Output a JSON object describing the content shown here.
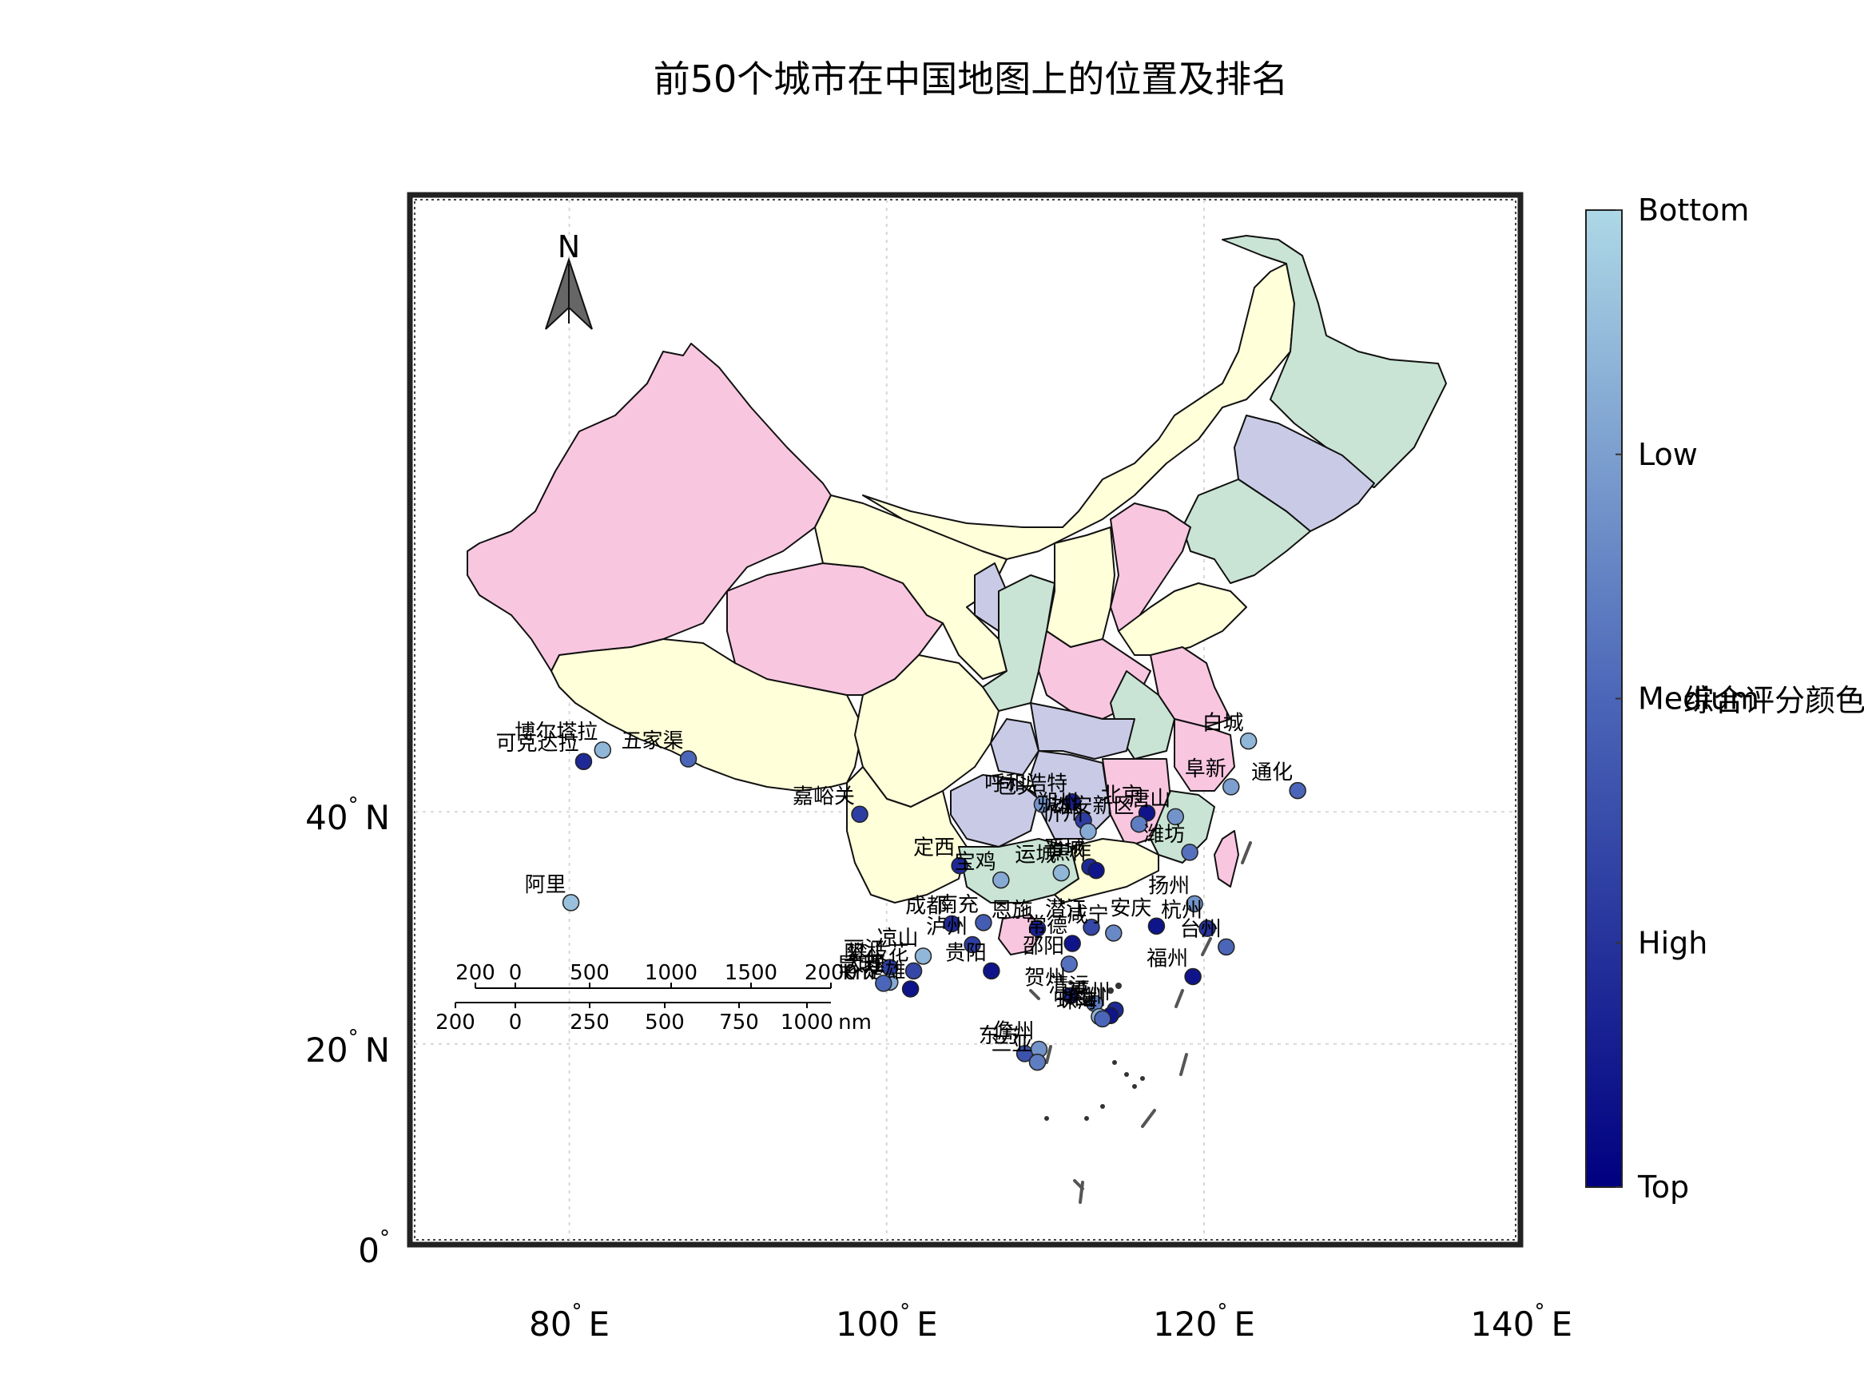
{
  "title": "前50个城市在中国地图上的位置及排名",
  "axes": {
    "x_ticks": [
      {
        "value": 80,
        "deg": "°",
        "label": "E"
      },
      {
        "value": 100,
        "deg": "°",
        "label": "E"
      },
      {
        "value": 120,
        "deg": "°",
        "label": "E"
      },
      {
        "value": 140,
        "deg": "°",
        "label": "E"
      }
    ],
    "y_ticks": [
      {
        "value": 40,
        "deg": "°",
        "label": "N"
      },
      {
        "value": 20,
        "deg": "°",
        "label": "N"
      },
      {
        "value": 0,
        "deg": "°",
        "label": ""
      }
    ],
    "lon_range": [
      70,
      140
    ],
    "lat_range": [
      0,
      57
    ],
    "grid": true
  },
  "north_arrow": {
    "label": "N"
  },
  "scale_bar": {
    "km": {
      "labels": [
        "200",
        "0",
        "500",
        "1000",
        "1500",
        "2000"
      ],
      "unit": "km"
    },
    "nm": {
      "labels": [
        "200",
        "0",
        "250",
        "500",
        "750",
        "1000"
      ],
      "unit": "nm"
    }
  },
  "colorbar": {
    "title": "综合评分颜色",
    "ticks": [
      "Bottom",
      "Low",
      "Medium",
      "High",
      "Top"
    ],
    "color_top": "#000080",
    "color_bottom": "#add8e6"
  },
  "province_colors": [
    "#ffffd9",
    "#f9c6e0",
    "#c9e4d4",
    "#c9cbe6"
  ],
  "chart_data": {
    "type": "scatter",
    "title": "前50个城市在中国地图上的位置及排名",
    "x_axis": "longitude",
    "y_axis": "latitude",
    "points": [
      {
        "name": "博尔塔拉",
        "lon": 82.1,
        "lat": 44.9,
        "score": 0.85
      },
      {
        "name": "可克达拉",
        "lon": 80.9,
        "lat": 44.0,
        "score": 0.2
      },
      {
        "name": "五家渠",
        "lon": 87.5,
        "lat": 44.2,
        "score": 0.5
      },
      {
        "name": "阿里",
        "lon": 80.1,
        "lat": 32.5,
        "score": 0.9
      },
      {
        "name": "嘉峪关",
        "lon": 98.3,
        "lat": 39.8,
        "score": 0.3
      },
      {
        "name": "呼和浩特",
        "lon": 111.7,
        "lat": 40.8,
        "score": 0.15
      },
      {
        "name": "包头",
        "lon": 109.8,
        "lat": 40.6,
        "score": 0.7
      },
      {
        "name": "朔州",
        "lon": 112.4,
        "lat": 39.3,
        "score": 0.3
      },
      {
        "name": "忻州",
        "lon": 112.7,
        "lat": 38.4,
        "score": 0.8
      },
      {
        "name": "北京",
        "lon": 116.4,
        "lat": 39.9,
        "score": 0.1
      },
      {
        "name": "雄安新区",
        "lon": 115.9,
        "lat": 39.0,
        "score": 0.6
      },
      {
        "name": "唐山",
        "lon": 118.2,
        "lat": 39.6,
        "score": 0.7
      },
      {
        "name": "白城",
        "lon": 122.8,
        "lat": 45.6,
        "score": 0.85
      },
      {
        "name": "阜新",
        "lon": 121.7,
        "lat": 42.0,
        "score": 0.75
      },
      {
        "name": "通化",
        "lon": 125.9,
        "lat": 41.7,
        "score": 0.5
      },
      {
        "name": "潍坊",
        "lon": 119.1,
        "lat": 36.7,
        "score": 0.55
      },
      {
        "name": "定西",
        "lon": 104.6,
        "lat": 35.6,
        "score": 0.2
      },
      {
        "name": "宝鸡",
        "lon": 107.2,
        "lat": 34.4,
        "score": 0.8
      },
      {
        "name": "运城",
        "lon": 111.0,
        "lat": 35.0,
        "score": 0.85
      },
      {
        "name": "晋城",
        "lon": 112.8,
        "lat": 35.5,
        "score": 0.2
      },
      {
        "name": "焦作",
        "lon": 113.2,
        "lat": 35.2,
        "score": 0.1
      },
      {
        "name": "扬州",
        "lon": 119.4,
        "lat": 32.4,
        "score": 0.7
      },
      {
        "name": "南充",
        "lon": 106.1,
        "lat": 30.8,
        "score": 0.45
      },
      {
        "name": "成都",
        "lon": 104.1,
        "lat": 30.7,
        "score": 0.2
      },
      {
        "name": "恩施",
        "lon": 109.5,
        "lat": 30.3,
        "score": 0.15
      },
      {
        "name": "潜江",
        "lon": 112.9,
        "lat": 30.4,
        "score": 0.35
      },
      {
        "name": "咸宁",
        "lon": 114.3,
        "lat": 29.9,
        "score": 0.65
      },
      {
        "name": "安庆",
        "lon": 117.0,
        "lat": 30.5,
        "score": 0.1
      },
      {
        "name": "杭州",
        "lon": 120.2,
        "lat": 30.3,
        "score": 0.25
      },
      {
        "name": "台州",
        "lon": 121.4,
        "lat": 28.7,
        "score": 0.5
      },
      {
        "name": "泸州",
        "lon": 105.4,
        "lat": 28.9,
        "score": 0.3
      },
      {
        "name": "常德",
        "lon": 111.7,
        "lat": 29.0,
        "score": 0.1
      },
      {
        "name": "凉山",
        "lon": 102.3,
        "lat": 27.9,
        "score": 0.85
      },
      {
        "name": "丽江",
        "lon": 100.2,
        "lat": 26.9,
        "score": 0.3
      },
      {
        "name": "攀枝花",
        "lon": 101.7,
        "lat": 26.6,
        "score": 0.35
      },
      {
        "name": "大理",
        "lon": 100.2,
        "lat": 25.6,
        "score": 0.8
      },
      {
        "name": "楚雄",
        "lon": 101.5,
        "lat": 25.0,
        "score": 0.1
      },
      {
        "name": "昆明",
        "lon": 99.8,
        "lat": 25.5,
        "score": 0.5
      },
      {
        "name": "贵阳",
        "lon": 106.6,
        "lat": 26.6,
        "score": 0.1
      },
      {
        "name": "邵阳",
        "lon": 111.5,
        "lat": 27.2,
        "score": 0.55
      },
      {
        "name": "福州",
        "lon": 119.3,
        "lat": 26.1,
        "score": 0.1
      },
      {
        "name": "贺州",
        "lon": 111.6,
        "lat": 24.4,
        "score": 0.2
      },
      {
        "name": "清远",
        "lon": 113.1,
        "lat": 23.7,
        "score": 0.6
      },
      {
        "name": "惠州",
        "lon": 114.4,
        "lat": 23.1,
        "score": 0.2
      },
      {
        "name": "深圳",
        "lon": 114.1,
        "lat": 22.6,
        "score": 0.1
      },
      {
        "name": "中山",
        "lon": 113.4,
        "lat": 22.5,
        "score": 0.85
      },
      {
        "name": "珠海",
        "lon": 113.6,
        "lat": 22.3,
        "score": 0.5
      },
      {
        "name": "东方",
        "lon": 108.7,
        "lat": 19.1,
        "score": 0.4
      },
      {
        "name": "儋州",
        "lon": 109.6,
        "lat": 19.5,
        "score": 0.7
      },
      {
        "name": "三亚",
        "lon": 109.5,
        "lat": 18.3,
        "score": 0.6
      }
    ]
  }
}
